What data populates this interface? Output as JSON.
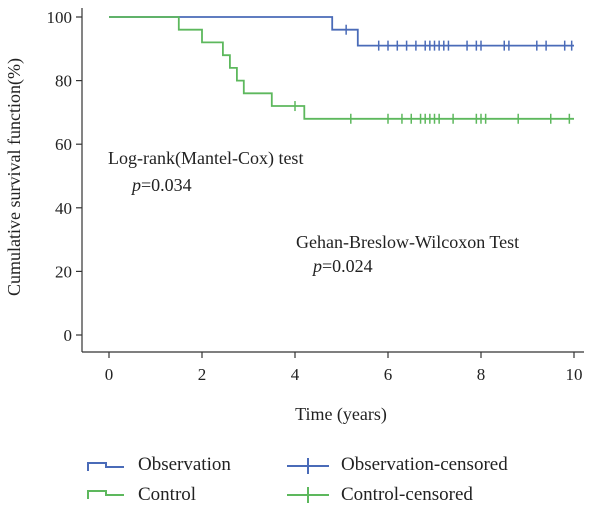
{
  "chart_data": {
    "type": "line",
    "xlabel": "Time (years)",
    "ylabel": "Cumulative survival function(%)",
    "xlim": [
      0,
      10
    ],
    "ylim": [
      0,
      100
    ],
    "xticks": [
      0,
      2,
      4,
      6,
      8,
      10
    ],
    "yticks": [
      0,
      20,
      40,
      60,
      80,
      100
    ],
    "grid": false,
    "legend_position": "bottom",
    "series": [
      {
        "name": "Observation",
        "color": "#4a6bb8",
        "steps": [
          [
            0,
            100
          ],
          [
            4.8,
            100
          ],
          [
            4.8,
            96
          ],
          [
            5.35,
            96
          ],
          [
            5.35,
            91
          ],
          [
            10,
            91
          ]
        ],
        "censored_name": "Observation-censored",
        "censored": [
          5.1,
          5.8,
          6.0,
          6.2,
          6.4,
          6.6,
          6.8,
          6.9,
          7.0,
          7.1,
          7.2,
          7.3,
          7.7,
          7.9,
          8.0,
          8.5,
          8.6,
          9.2,
          9.4,
          9.8,
          9.95
        ]
      },
      {
        "name": "Control",
        "color": "#5db85d",
        "steps": [
          [
            0,
            100
          ],
          [
            1.5,
            100
          ],
          [
            1.5,
            96
          ],
          [
            2.0,
            96
          ],
          [
            2.0,
            92
          ],
          [
            2.45,
            92
          ],
          [
            2.45,
            88
          ],
          [
            2.6,
            88
          ],
          [
            2.6,
            84
          ],
          [
            2.75,
            84
          ],
          [
            2.75,
            80
          ],
          [
            2.9,
            80
          ],
          [
            2.9,
            76
          ],
          [
            3.5,
            76
          ],
          [
            3.5,
            72
          ],
          [
            4.2,
            72
          ],
          [
            4.2,
            68
          ],
          [
            10,
            68
          ]
        ],
        "censored_name": "Control-censored",
        "censored": [
          4.0,
          5.2,
          6.0,
          6.3,
          6.5,
          6.7,
          6.8,
          6.9,
          7.0,
          7.1,
          7.4,
          7.9,
          8.0,
          8.1,
          8.8,
          9.5,
          9.9
        ]
      }
    ],
    "annotations": [
      {
        "text": "Log-rank(Mantel-Cox) test",
        "p_label": "p",
        "p_value": "=0.034"
      },
      {
        "text": "Gehan-Breslow-Wilcoxon Test",
        "p_label": "p",
        "p_value": "=0.024"
      }
    ]
  }
}
